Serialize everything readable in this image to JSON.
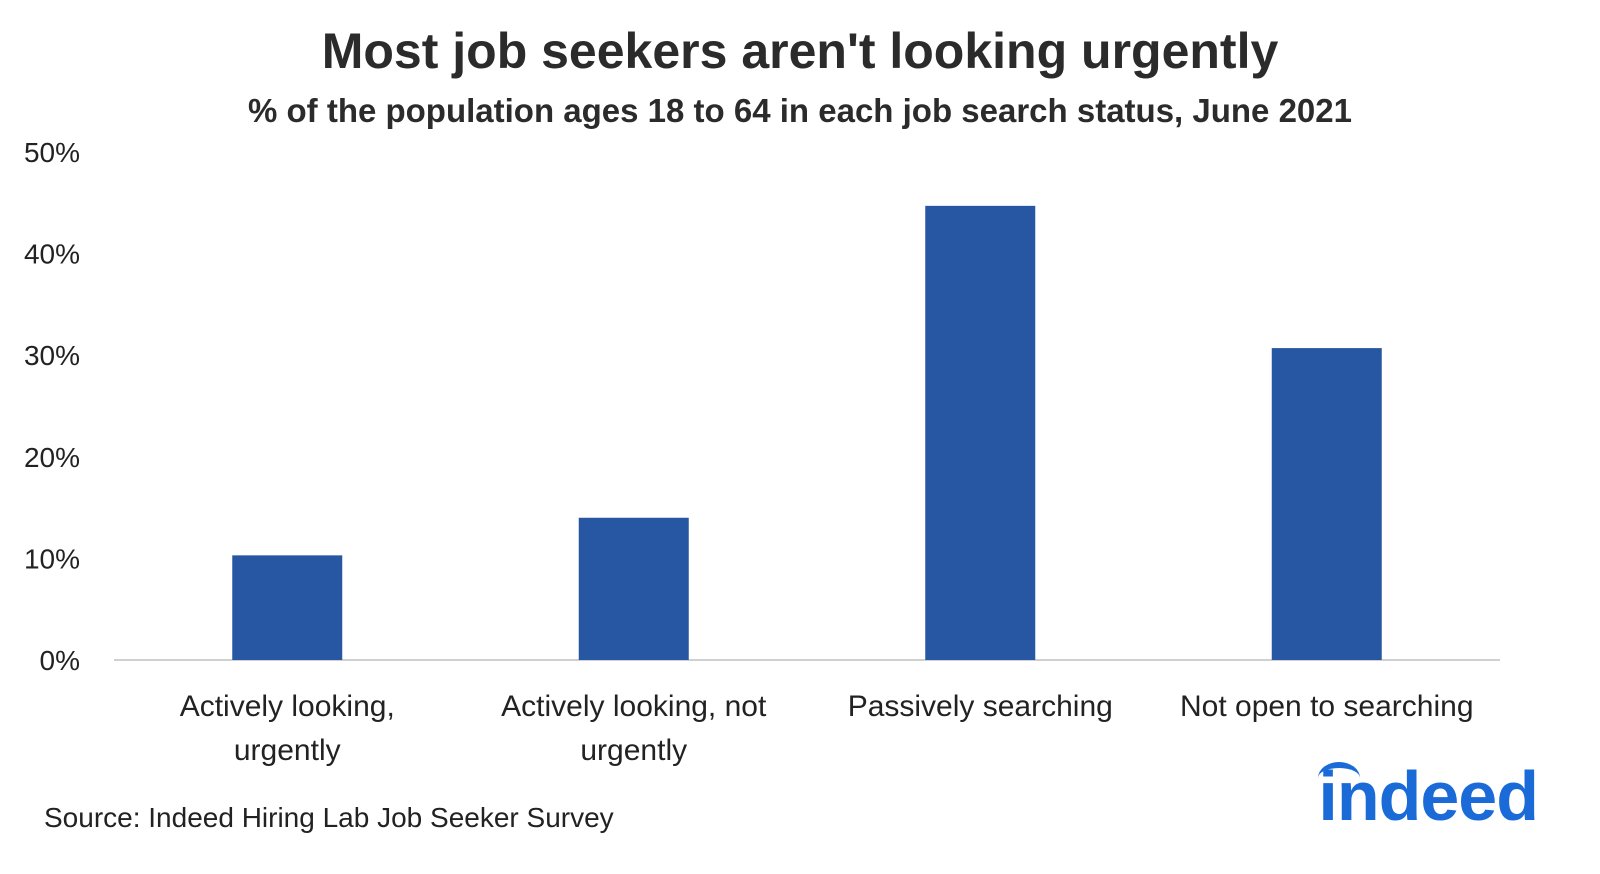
{
  "title": "Most job seekers aren't looking urgently",
  "subtitle": "% of the population ages 18 to 64 in each job search status, June 2021",
  "source": "Source: Indeed Hiring Lab Job Seeker Survey",
  "logo": "indeed",
  "colors": {
    "bar": "#2757a3",
    "axis": "#d0d0d0",
    "logo": "#1a6bd8"
  },
  "chart_data": {
    "type": "bar",
    "categories": [
      [
        "Actively looking,",
        "urgently"
      ],
      [
        "Actively looking, not",
        "urgently"
      ],
      [
        "Passively searching"
      ],
      [
        "Not open to searching"
      ]
    ],
    "values": [
      10.3,
      14.0,
      44.7,
      30.7
    ],
    "ylim": [
      0,
      50
    ],
    "yticks": [
      0,
      10,
      20,
      30,
      40,
      50
    ],
    "ytick_labels": [
      "0%",
      "10%",
      "20%",
      "30%",
      "40%",
      "50%"
    ],
    "grid": false,
    "legend": "none"
  }
}
